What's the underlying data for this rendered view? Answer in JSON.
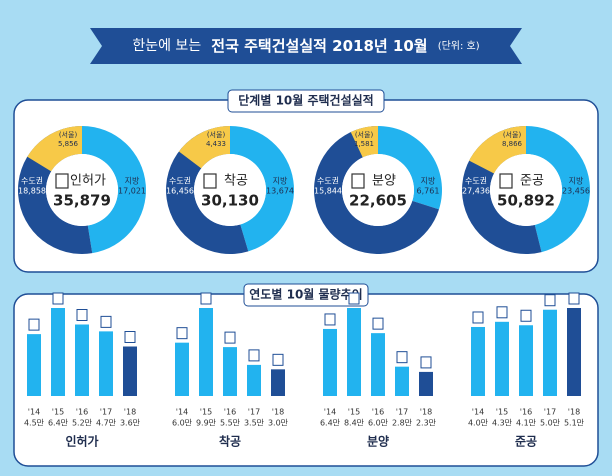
{
  "title": {
    "prefix": "한눈에 보는",
    "main": "전국 주택건설실적 2018년 10월",
    "unit": "(단위: 호)"
  },
  "sections": [
    "단계별 10월 주택건설실적",
    "연도별 10월 물량추이"
  ],
  "chart_data": [
    {
      "type": "donut",
      "title": "인허가",
      "total": 35879,
      "total_label": "35,879",
      "categories": [
        "수도권",
        "(서울)",
        "지방"
      ],
      "values": [
        18858,
        5856,
        17021
      ],
      "value_labels": [
        "18,858",
        "5,856",
        "17,021"
      ],
      "colors": [
        "#1f4e96",
        "#f7c948",
        "#22b3ef"
      ]
    },
    {
      "type": "donut",
      "title": "착공",
      "total": 30130,
      "total_label": "30,130",
      "categories": [
        "수도권",
        "(서울)",
        "지방"
      ],
      "values": [
        16456,
        4433,
        13674
      ],
      "value_labels": [
        "16,456",
        "4,433",
        "13,674"
      ],
      "colors": [
        "#1f4e96",
        "#f7c948",
        "#22b3ef"
      ]
    },
    {
      "type": "donut",
      "title": "분양",
      "total": 22605,
      "total_label": "22,605",
      "categories": [
        "수도권",
        "(서울)",
        "지방"
      ],
      "values": [
        15844,
        1581,
        6761
      ],
      "value_labels": [
        "15,844",
        "1,581",
        "6,761"
      ],
      "colors": [
        "#1f4e96",
        "#f7c948",
        "#22b3ef"
      ]
    },
    {
      "type": "donut",
      "title": "준공",
      "total": 50892,
      "total_label": "50,892",
      "categories": [
        "수도권",
        "(서울)",
        "지방"
      ],
      "values": [
        27436,
        8866,
        23456
      ],
      "value_labels": [
        "27,436",
        "8,866",
        "23,456"
      ],
      "colors": [
        "#1f4e96",
        "#f7c948",
        "#22b3ef"
      ]
    },
    {
      "type": "bar",
      "title": "인허가",
      "categories": [
        "'14",
        "'15",
        "'16",
        "'17",
        "'18"
      ],
      "values": [
        4.5,
        6.4,
        5.2,
        4.7,
        3.6
      ],
      "value_labels": [
        "4.5만",
        "6.4만",
        "5.2만",
        "4.7만",
        "3.6만"
      ],
      "colors": [
        "#22b3ef",
        "#22b3ef",
        "#22b3ef",
        "#22b3ef",
        "#1f4e96"
      ]
    },
    {
      "type": "bar",
      "title": "착공",
      "categories": [
        "'14",
        "'15",
        "'16",
        "'17",
        "'18"
      ],
      "values": [
        6.0,
        9.9,
        5.5,
        3.5,
        3.0
      ],
      "value_labels": [
        "6.0만",
        "9.9만",
        "5.5만",
        "3.5만",
        "3.0만"
      ],
      "colors": [
        "#22b3ef",
        "#22b3ef",
        "#22b3ef",
        "#22b3ef",
        "#1f4e96"
      ]
    },
    {
      "type": "bar",
      "title": "분양",
      "categories": [
        "'14",
        "'15",
        "'16",
        "'17",
        "'18"
      ],
      "values": [
        6.4,
        8.4,
        6.0,
        2.8,
        2.3
      ],
      "value_labels": [
        "6.4만",
        "8.4만",
        "6.0만",
        "2.8만",
        "2.3만"
      ],
      "colors": [
        "#22b3ef",
        "#22b3ef",
        "#22b3ef",
        "#22b3ef",
        "#1f4e96"
      ]
    },
    {
      "type": "bar",
      "title": "준공",
      "categories": [
        "'14",
        "'15",
        "'16",
        "'17",
        "'18"
      ],
      "values": [
        4.0,
        4.3,
        4.1,
        5.0,
        5.1
      ],
      "value_labels": [
        "4.0만",
        "4.3만",
        "4.1만",
        "5.0만",
        "5.1만"
      ],
      "colors": [
        "#22b3ef",
        "#22b3ef",
        "#22b3ef",
        "#22b3ef",
        "#1f4e96"
      ]
    }
  ]
}
